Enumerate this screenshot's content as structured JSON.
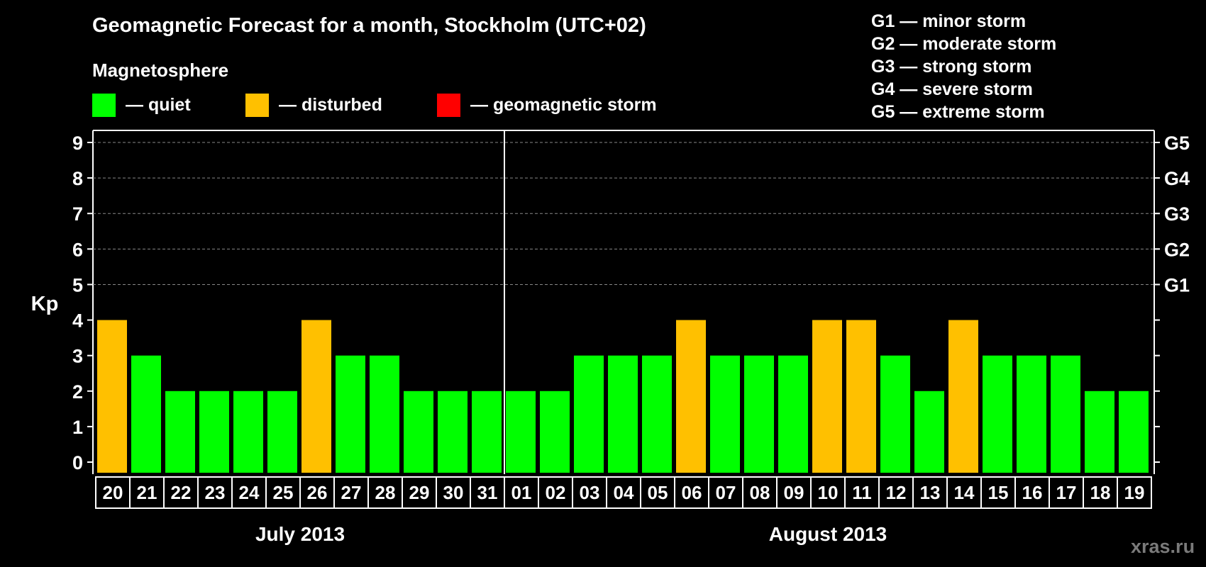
{
  "title": "Geomagnetic Forecast for a month, Stockholm (UTC+02)",
  "magnetosphere_label": "Magnetosphere",
  "legend": [
    {
      "label": "— quiet",
      "color": "#00ff00"
    },
    {
      "label": "— disturbed",
      "color": "#ffc000"
    },
    {
      "label": "— geomagnetic storm",
      "color": "#ff0000"
    }
  ],
  "g_scale": [
    "G1 — minor storm",
    "G2 — moderate storm",
    "G3 — strong storm",
    "G4 — severe storm",
    "G5 — extreme storm"
  ],
  "watermark": "xras.ru",
  "chart_data": {
    "type": "bar",
    "ylabel": "Kp",
    "ylim": [
      0,
      9
    ],
    "yticks": [
      "0",
      "1",
      "2",
      "3",
      "4",
      "5",
      "6",
      "7",
      "8",
      "9"
    ],
    "right_ticks": [
      {
        "kp": 5,
        "label": "G1"
      },
      {
        "kp": 6,
        "label": "G2"
      },
      {
        "kp": 7,
        "label": "G3"
      },
      {
        "kp": 8,
        "label": "G4"
      },
      {
        "kp": 9,
        "label": "G5"
      }
    ],
    "grid": "dashed horizontal at 5-9",
    "categories": [
      "20",
      "21",
      "22",
      "23",
      "24",
      "25",
      "26",
      "27",
      "28",
      "29",
      "30",
      "31",
      "01",
      "02",
      "03",
      "04",
      "05",
      "06",
      "07",
      "08",
      "09",
      "10",
      "11",
      "12",
      "13",
      "14",
      "15",
      "16",
      "17",
      "18",
      "19"
    ],
    "values": [
      4,
      3,
      2,
      2,
      2,
      2,
      4,
      3,
      3,
      2,
      2,
      2,
      2,
      2,
      3,
      3,
      3,
      4,
      3,
      3,
      3,
      4,
      4,
      3,
      2,
      4,
      3,
      3,
      3,
      2,
      2
    ],
    "colors": {
      "quiet": "#00ff00",
      "disturbed": "#ffc000",
      "storm": "#ff0000"
    },
    "months": [
      {
        "label": "July 2013",
        "count": 12
      },
      {
        "label": "August 2013",
        "count": 19
      }
    ]
  }
}
